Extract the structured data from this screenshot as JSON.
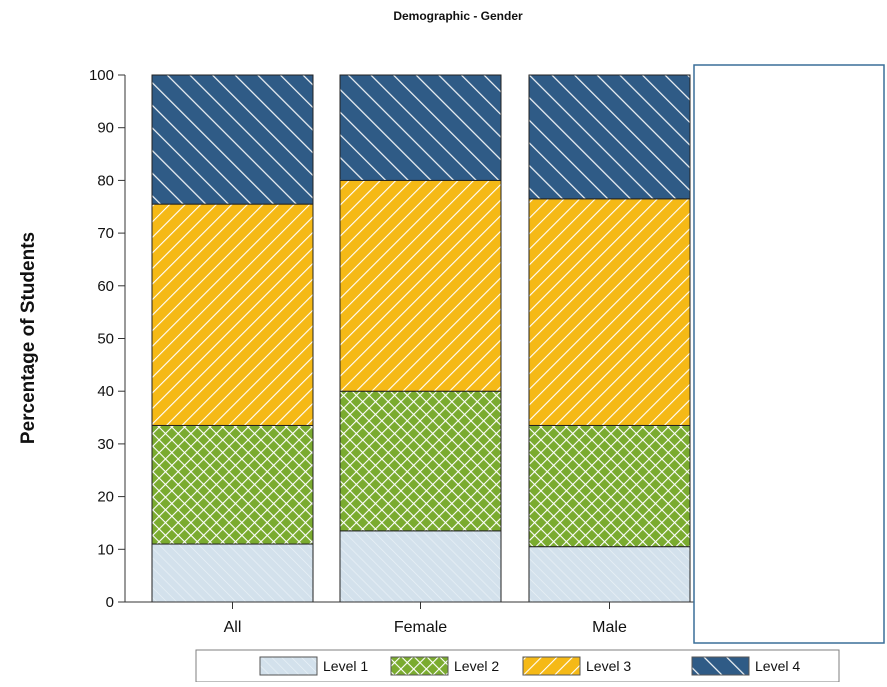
{
  "chart_data": {
    "type": "bar",
    "stacked": true,
    "title": "Demographic - Gender",
    "ylabel": "Percentage of Students",
    "xlabel": "",
    "ylim": [
      0,
      100
    ],
    "yticks": [
      0,
      10,
      20,
      30,
      40,
      50,
      60,
      70,
      80,
      90,
      100
    ],
    "categories": [
      "All",
      "Female",
      "Male"
    ],
    "series": [
      {
        "name": "Level 1",
        "values": [
          11,
          13.5,
          10.5
        ],
        "color": "#d3e1ec",
        "pattern": "thin-diagonal"
      },
      {
        "name": "Level 2",
        "values": [
          22.5,
          26.5,
          23
        ],
        "color": "#7aab2f",
        "pattern": "crosshatch"
      },
      {
        "name": "Level 3",
        "values": [
          42,
          40,
          43
        ],
        "color": "#f5b916",
        "pattern": "forward-diagonal"
      },
      {
        "name": "Level 4",
        "values": [
          24.5,
          20,
          23.5
        ],
        "color": "#2f5b86",
        "pattern": "back-diagonal"
      }
    ],
    "legend_position": "bottom",
    "grid": false
  }
}
